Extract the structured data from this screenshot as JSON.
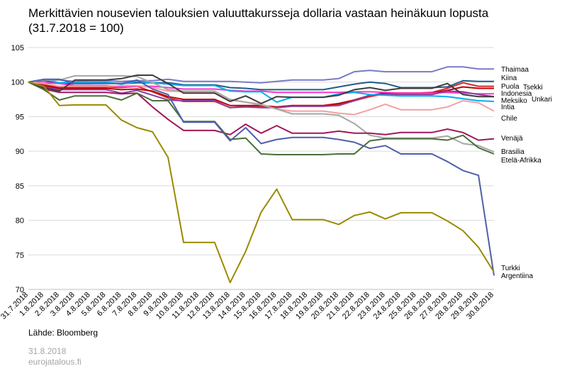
{
  "header": {
    "title_line1": "Merkittävien nousevien talouksien valuuttakursseja dollaria vastaan heinäkuun lopusta",
    "title_line2": "(31.7.2018 = 100)"
  },
  "footer": {
    "source": "Lähde: Bloomberg",
    "date": "31.8.2018",
    "site": "eurojatalous.fi"
  },
  "chart_data": {
    "type": "line",
    "x": [
      "31.7.2018",
      "1.8.2018",
      "2.8.2018",
      "3.8.2018",
      "4.8.2018",
      "5.8.2018",
      "6.8.2018",
      "7.8.2018",
      "8.8.2018",
      "9.8.2018",
      "10.8.2018",
      "11.8.2018",
      "12.8.2018",
      "13.8.2018",
      "14.8.2018",
      "15.8.2018",
      "16.8.2018",
      "17.8.2018",
      "18.8.2018",
      "19.8.2018",
      "20.8.2018",
      "21.8.2018",
      "22.8.2018",
      "23.8.2018",
      "24.8.2018",
      "25.8.2018",
      "26.8.2018",
      "27.8.2018",
      "28.8.2018",
      "29.8.2018",
      "30.8.2018"
    ],
    "ylim": [
      70,
      105
    ],
    "yticks": [
      70,
      75,
      80,
      85,
      90,
      95,
      100,
      105
    ],
    "grid": "horizontal",
    "series": [
      {
        "name": "Thaimaa",
        "color": "#7a7ac6",
        "values": [
          100,
          100.2,
          100.3,
          100.1,
          100.2,
          100.2,
          100.1,
          100.2,
          100.2,
          100.4,
          100.1,
          100.1,
          100.1,
          100.1,
          100,
          99.9,
          100.1,
          100.3,
          100.3,
          100.3,
          100.5,
          101.5,
          101.7,
          101.5,
          101.5,
          101.5,
          101.5,
          102.2,
          102.2,
          101.9,
          101.9
        ]
      },
      {
        "name": "Kiina",
        "color": "#1f5c8c",
        "values": [
          100,
          100.2,
          99.8,
          99.8,
          99.8,
          99.9,
          99.8,
          99.9,
          99.9,
          99.9,
          99.6,
          99.6,
          99.6,
          99.2,
          99.1,
          98.9,
          98.9,
          98.9,
          98.9,
          98.9,
          99.3,
          99.7,
          100,
          99.8,
          99.2,
          99.2,
          99.2,
          99.3,
          100.2,
          100.1,
          100.1
        ]
      },
      {
        "name": "Puola",
        "color": "#d62728",
        "values": [
          100,
          99.6,
          99.2,
          99.3,
          99.3,
          99.3,
          99.2,
          99.4,
          98.6,
          97.7,
          97.2,
          97.2,
          97.2,
          96.3,
          96.5,
          96.5,
          96.3,
          96.5,
          96.5,
          96.5,
          96.8,
          97.3,
          97.9,
          98.3,
          98.4,
          98.4,
          98.5,
          99.1,
          99.9,
          99.4,
          99.4
        ]
      },
      {
        "name": "Tsekki",
        "color": "#c00000",
        "values": [
          100,
          99.5,
          99.1,
          99.1,
          99.1,
          99.1,
          98.9,
          99,
          98.7,
          97.9,
          97.5,
          97.5,
          97.5,
          96.6,
          96.6,
          96.6,
          96.4,
          96.6,
          96.6,
          96.6,
          96.9,
          97.4,
          98.1,
          98.4,
          98.4,
          98.4,
          98.4,
          98.8,
          99.3,
          99.1,
          99.1
        ]
      },
      {
        "name": "Indonesia",
        "color": "#ff33cc",
        "values": [
          100,
          99.9,
          99.8,
          99.5,
          99.5,
          99.5,
          99.3,
          99.4,
          99.4,
          99.2,
          99,
          99,
          99,
          98.8,
          98.7,
          98.7,
          98.5,
          98.5,
          98.5,
          98.5,
          98.5,
          98.6,
          98.6,
          98.5,
          98.4,
          98.4,
          98.4,
          98.5,
          98.4,
          98.3,
          98.3
        ]
      },
      {
        "name": "Unkari",
        "color": "#8a3fa0",
        "values": [
          100,
          99.3,
          98.9,
          98.9,
          98.9,
          98.9,
          98.4,
          98.8,
          98.1,
          97.4,
          97.3,
          97.3,
          97.3,
          96.3,
          96.4,
          96.3,
          96.3,
          96.5,
          96.5,
          96.5,
          96.6,
          97.3,
          98.1,
          98.2,
          98.2,
          98.2,
          98.2,
          98.7,
          98.6,
          98.2,
          97.9
        ]
      },
      {
        "name": "Meksiko",
        "color": "#00b0f0",
        "values": [
          100,
          100.4,
          99.9,
          100,
          100,
          100,
          99.7,
          100.1,
          99.9,
          99.7,
          99.5,
          99.5,
          99.5,
          98.7,
          98.6,
          98.6,
          97.1,
          97.8,
          97.8,
          97.8,
          98.3,
          98.5,
          98.2,
          98.1,
          98,
          98,
          98,
          97.9,
          97.6,
          97.3,
          97.2
        ]
      },
      {
        "name": "Intia",
        "color": "#f4a0a0",
        "values": [
          100,
          99.8,
          99.4,
          99.4,
          99.4,
          99.4,
          99.5,
          99.5,
          99.2,
          98.7,
          98.6,
          98.6,
          98.6,
          97.4,
          97.1,
          96.8,
          96.1,
          95.8,
          95.8,
          95.8,
          95.5,
          95.3,
          96,
          96.8,
          96,
          96,
          96,
          96.4,
          97.3,
          97,
          95.8
        ]
      },
      {
        "name": "Chile",
        "color": "#a6a6a6",
        "values": [
          100,
          100.3,
          100.3,
          100.9,
          100.9,
          100.9,
          100.9,
          100.8,
          99.9,
          98.9,
          98.7,
          98.7,
          98.7,
          97.5,
          97.1,
          96.7,
          96.1,
          95.4,
          95.4,
          95.4,
          95.2,
          94,
          92.3,
          91.9,
          91.9,
          91.9,
          91.9,
          92.2,
          91.1,
          90.8,
          89.9
        ]
      },
      {
        "name": "Venäjä",
        "color": "#a0185a",
        "values": [
          100,
          99,
          98.5,
          98.5,
          98.5,
          98.5,
          98.3,
          98.4,
          96.4,
          94.6,
          93,
          93,
          93,
          92.4,
          93.9,
          92.6,
          93.7,
          92.6,
          92.6,
          92.6,
          92.9,
          92.6,
          92.6,
          92.4,
          92.7,
          92.7,
          92.7,
          93.2,
          92.7,
          91.6,
          91.8
        ]
      },
      {
        "name": "Brasilia",
        "color": "#4c6e3a",
        "values": [
          100,
          98.9,
          97.4,
          98,
          98,
          98,
          97.4,
          98.4,
          97.3,
          97.3,
          94.3,
          94.3,
          94.3,
          91.7,
          91.9,
          89.6,
          89.5,
          89.5,
          89.5,
          89.5,
          89.6,
          89.6,
          91.5,
          91.8,
          91.8,
          91.8,
          91.8,
          91.6,
          92.3,
          90.5,
          89.6
        ]
      },
      {
        "name": "Etelä-Afrikka",
        "color": "#3d3d3d",
        "values": [
          100,
          99.2,
          98.7,
          100.3,
          100.3,
          100.3,
          100.5,
          101,
          101,
          99.8,
          98.4,
          98.4,
          98.4,
          97.2,
          98,
          96.9,
          97.9,
          97.8,
          97.8,
          97.8,
          98.1,
          98.9,
          99.2,
          98.8,
          99.1,
          99.1,
          99.1,
          99.8,
          98.2,
          97.9,
          97.9
        ]
      },
      {
        "name": "Argentiina",
        "color": "#4f5fa8",
        "values": [
          100,
          100.4,
          100.4,
          99.8,
          99.8,
          99.8,
          99.8,
          100.3,
          99,
          98.2,
          94.2,
          94.2,
          94.2,
          91.5,
          93.4,
          91.1,
          91.7,
          92,
          92,
          92,
          91.7,
          91.3,
          90.4,
          90.8,
          89.6,
          89.6,
          89.6,
          88.5,
          87.2,
          86.5,
          72
        ]
      },
      {
        "name": "Turkki",
        "color": "#9a8a00",
        "values": [
          100,
          99.4,
          96.6,
          96.7,
          96.7,
          96.7,
          94.5,
          93.4,
          92.8,
          89.1,
          76.8,
          76.8,
          76.8,
          71,
          75.5,
          81.2,
          84.5,
          80.1,
          80.1,
          80.1,
          79.4,
          80.7,
          81.2,
          80.2,
          81.1,
          81.1,
          81.1,
          79.9,
          78.5,
          76.1,
          72.5
        ]
      }
    ]
  }
}
